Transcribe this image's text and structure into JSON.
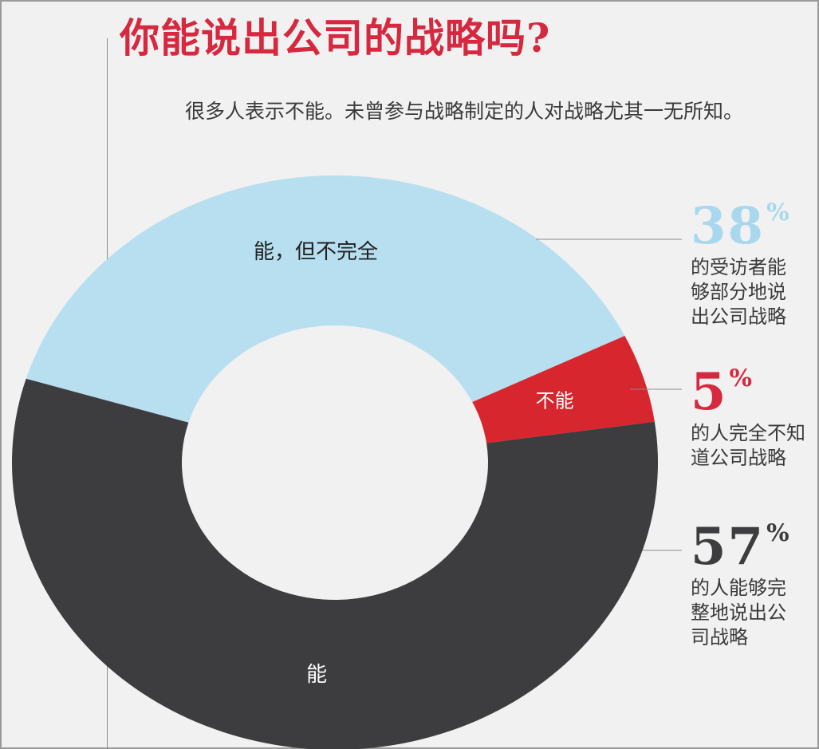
{
  "title": "你能说出公司的战略吗?",
  "intro": "很多人表示不能。未曾参与战略制定的人对战略尤其一无所知。",
  "colors": {
    "partial": "#b7dff0",
    "cannot": "#d8262e",
    "can": "#3d3c3f",
    "title": "#d6283f"
  },
  "chart_data": {
    "type": "pie",
    "donut": true,
    "categories": [
      "能，但不完全",
      "不能",
      "能"
    ],
    "values": [
      38,
      5,
      57
    ],
    "unit": "%"
  },
  "callouts": [
    {
      "value": "38",
      "unit": "%",
      "color": "#a9d8ee",
      "text": "的受访者能\n够部分地说\n出公司战略"
    },
    {
      "value": "5",
      "unit": "%",
      "color": "#d6283f",
      "text": "的人完全不知\n道公司战略"
    },
    {
      "value": "57",
      "unit": "%",
      "color": "#3d3c3f",
      "text": "的人能够完\n整地说出公\n司战略"
    }
  ]
}
